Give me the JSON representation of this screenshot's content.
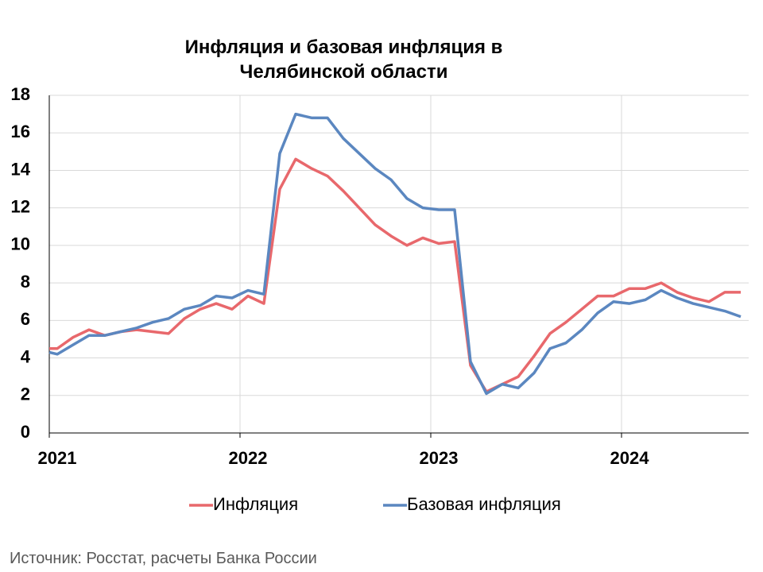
{
  "chart_data": {
    "type": "line",
    "title": "Инфляция и базовая инфляция в Челябинской области",
    "source": "Источник: Росстат, расчеты Банка России",
    "x": [
      2021,
      2021.0417,
      2021.125,
      2021.2083,
      2021.2917,
      2021.375,
      2021.4583,
      2021.5417,
      2021.625,
      2021.7083,
      2021.7917,
      2021.875,
      2021.9583,
      2022.0417,
      2022.125,
      2022.2083,
      2022.2917,
      2022.375,
      2022.4583,
      2022.5417,
      2022.625,
      2022.7083,
      2022.7917,
      2022.875,
      2022.9583,
      2023.0417,
      2023.125,
      2023.2083,
      2023.2917,
      2023.375,
      2023.4583,
      2023.5417,
      2023.625,
      2023.7083,
      2023.7917,
      2023.875,
      2023.9583,
      2024.0417,
      2024.125,
      2024.2083,
      2024.2917,
      2024.375,
      2024.4583,
      2024.5417,
      2024.625
    ],
    "series": [
      {
        "name": "Инфляция",
        "color": "#e8686c",
        "values": [
          4.5,
          4.5,
          5.1,
          5.5,
          5.2,
          5.4,
          5.5,
          5.4,
          5.3,
          6.1,
          6.6,
          6.9,
          6.6,
          7.3,
          6.9,
          13.0,
          14.6,
          14.1,
          13.7,
          12.9,
          12.0,
          11.1,
          10.5,
          10.0,
          10.4,
          10.1,
          10.2,
          3.6,
          2.2,
          2.6,
          3.0,
          4.1,
          5.3,
          5.9,
          6.6,
          7.3,
          7.3,
          7.7,
          7.7,
          8.0,
          7.5,
          7.2,
          7.0,
          7.5,
          7.5
        ]
      },
      {
        "name": "Базовая инфляция",
        "color": "#5b87c0",
        "values": [
          4.3,
          4.2,
          4.7,
          5.2,
          5.2,
          5.4,
          5.6,
          5.9,
          6.1,
          6.6,
          6.8,
          7.3,
          7.2,
          7.6,
          7.4,
          14.9,
          17.0,
          16.8,
          16.8,
          15.7,
          14.9,
          14.1,
          13.5,
          12.5,
          12.0,
          11.9,
          11.9,
          3.8,
          2.1,
          2.6,
          2.4,
          3.2,
          4.5,
          4.8,
          5.5,
          6.4,
          7.0,
          6.9,
          7.1,
          7.6,
          7.2,
          6.9,
          6.7,
          6.5,
          6.2
        ]
      }
    ],
    "xlim": [
      2021,
      2024.6667
    ],
    "xticks": [
      2021,
      2022,
      2023,
      2024
    ],
    "ylim": [
      0,
      18
    ],
    "yticks": [
      0,
      2,
      4,
      6,
      8,
      10,
      12,
      14,
      16,
      18
    ],
    "grid": true,
    "legend": "bottom"
  }
}
